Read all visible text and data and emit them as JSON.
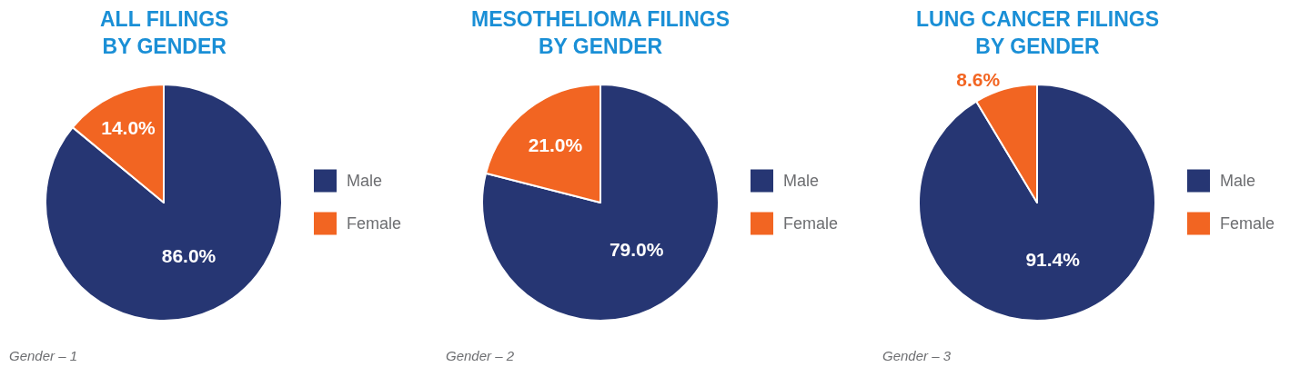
{
  "chart_data": [
    {
      "type": "pie",
      "title": "ALL FILINGS\nBY GENDER",
      "categories": [
        "Male",
        "Female"
      ],
      "values": [
        86.0,
        14.0
      ],
      "colors": [
        "#263673",
        "#f26522"
      ],
      "value_labels": [
        "86.0%",
        "14.0%"
      ],
      "legend": "right",
      "annotations": [
        "Gender – 1"
      ]
    },
    {
      "type": "pie",
      "title": "MESOTHELIOMA FILINGS\nBY GENDER",
      "categories": [
        "Male",
        "Female"
      ],
      "values": [
        79.0,
        21.0
      ],
      "colors": [
        "#263673",
        "#f26522"
      ],
      "value_labels": [
        "79.0%",
        "21.0%"
      ],
      "legend": "right",
      "annotations": [
        "Gender – 2"
      ]
    },
    {
      "type": "pie",
      "title": "LUNG CANCER FILINGS\nBY GENDER",
      "categories": [
        "Male",
        "Female"
      ],
      "values": [
        91.4,
        8.6
      ],
      "colors": [
        "#263673",
        "#f26522"
      ],
      "value_labels": [
        "91.4%",
        "8.6%"
      ],
      "legend": "right",
      "annotations": [
        "Gender – 3"
      ]
    }
  ]
}
